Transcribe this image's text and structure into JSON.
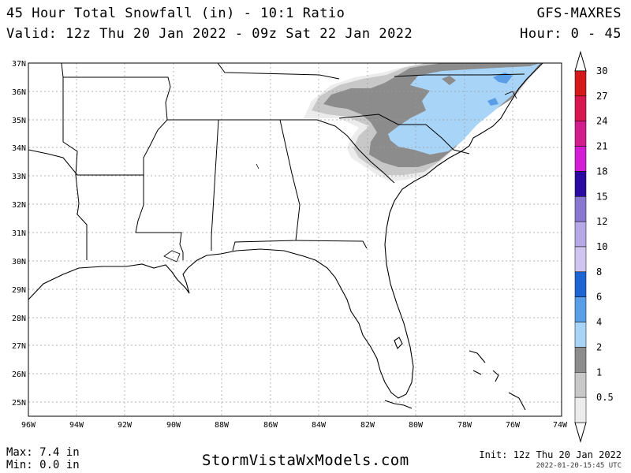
{
  "header": {
    "title": "45 Hour Total Snowfall (in) - 10:1 Ratio",
    "valid": "Valid: 12z Thu 20 Jan 2022 - 09z Sat 22 Jan 2022",
    "model": "GFS-MAXRES",
    "hours": "Hour: 0 - 45"
  },
  "map": {
    "lat_labels": [
      "37N",
      "36N",
      "35N",
      "34N",
      "33N",
      "32N",
      "31N",
      "30N",
      "29N",
      "28N",
      "27N",
      "26N",
      "25N"
    ],
    "lon_labels": [
      "96W",
      "94W",
      "92W",
      "90W",
      "88W",
      "86W",
      "84W",
      "82W",
      "80W",
      "78W",
      "76W",
      "74W"
    ],
    "colors": {
      "land": "#ffffff",
      "border": "#000000",
      "grid": "#9a9a9a"
    }
  },
  "legend": {
    "items": [
      {
        "label": "30",
        "color": "#d41a1a"
      },
      {
        "label": "27",
        "color": "#d81650"
      },
      {
        "label": "24",
        "color": "#d21e8c"
      },
      {
        "label": "21",
        "color": "#d41ed4"
      },
      {
        "label": "18",
        "color": "#2a0aa0"
      },
      {
        "label": "15",
        "color": "#8a78d0"
      },
      {
        "label": "12",
        "color": "#b6a8e6"
      },
      {
        "label": "10",
        "color": "#cec6f0"
      },
      {
        "label": "8",
        "color": "#1e64d2"
      },
      {
        "label": "6",
        "color": "#5a9ee8"
      },
      {
        "label": "4",
        "color": "#a8d4f8"
      },
      {
        "label": "2",
        "color": "#8c8c8c"
      },
      {
        "label": "1",
        "color": "#c8c8c8"
      },
      {
        "label": "0.5",
        "color": "#ececec"
      }
    ]
  },
  "footer": {
    "max": "Max: 7.4 in",
    "min": "Min: 0.0 in",
    "site": "StormVistaWxModels.com",
    "init": "Init: 12z Thu 20 Jan 2022",
    "timestamp": "2022-01-20-15:45 UTC"
  }
}
